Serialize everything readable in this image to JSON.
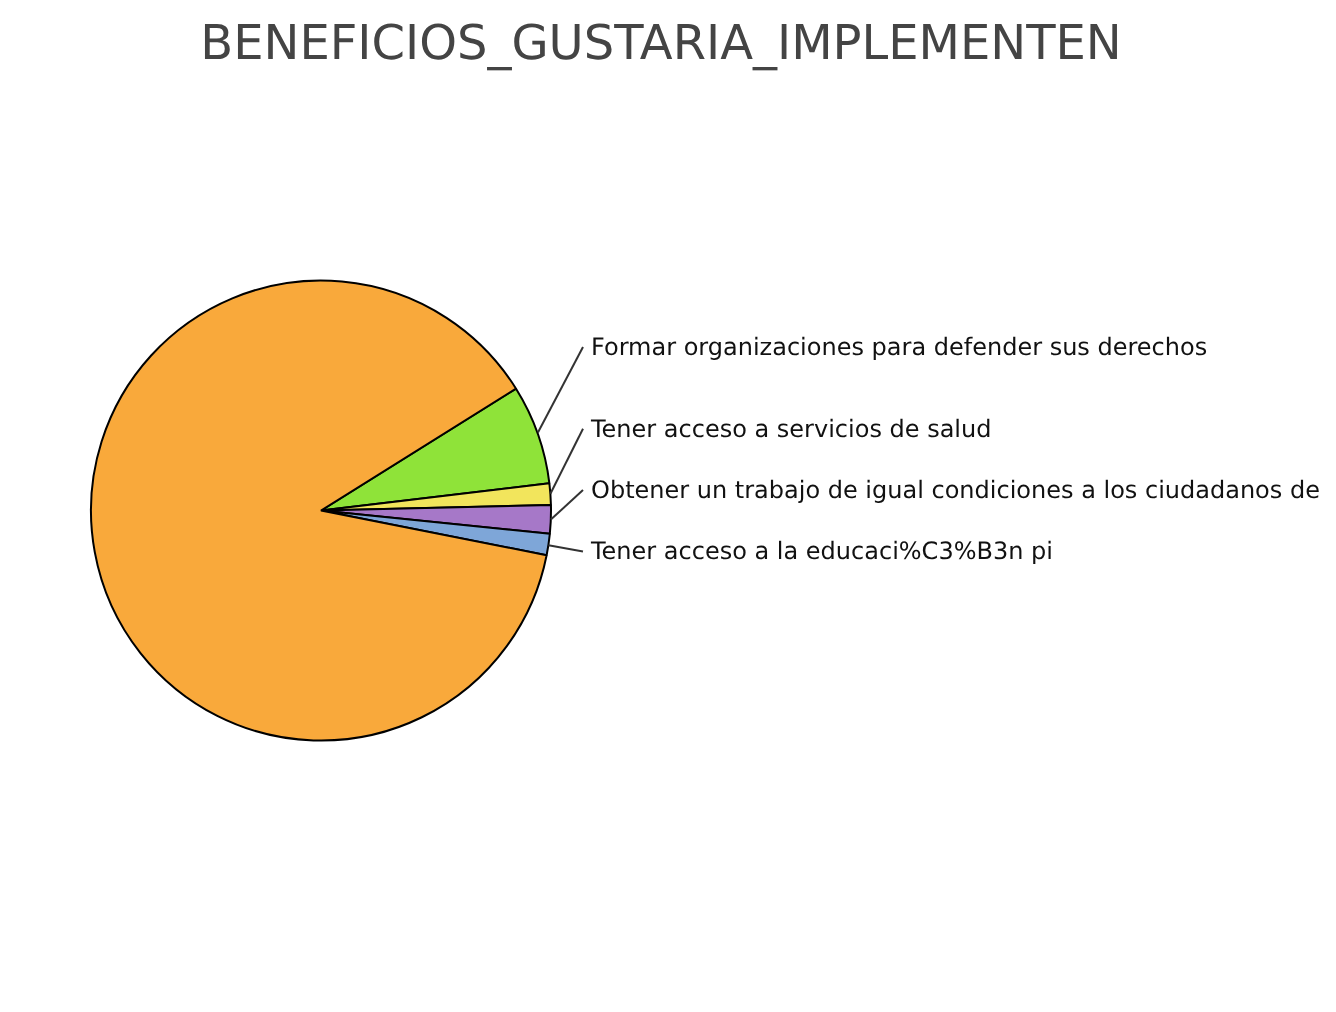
{
  "chart_data": {
    "type": "pie",
    "title": "BENEFICIOS_GUSTARIA_IMPLEMENTEN",
    "categories": [
      "Formar organizaciones para defender sus derechos",
      "Tener acceso a servicios de salud",
      "Obtener un trabajo de igual condiciones a los ciudadanos de",
      "Tener acceso a la educaci%C3%B3n pi",
      null
    ],
    "values": [
      7,
      1.5,
      2,
      1.5,
      88
    ],
    "colors": [
      "#8fe339",
      "#f2e55c",
      "#a678c8",
      "#7ea6d8",
      "#f9a93b"
    ]
  }
}
